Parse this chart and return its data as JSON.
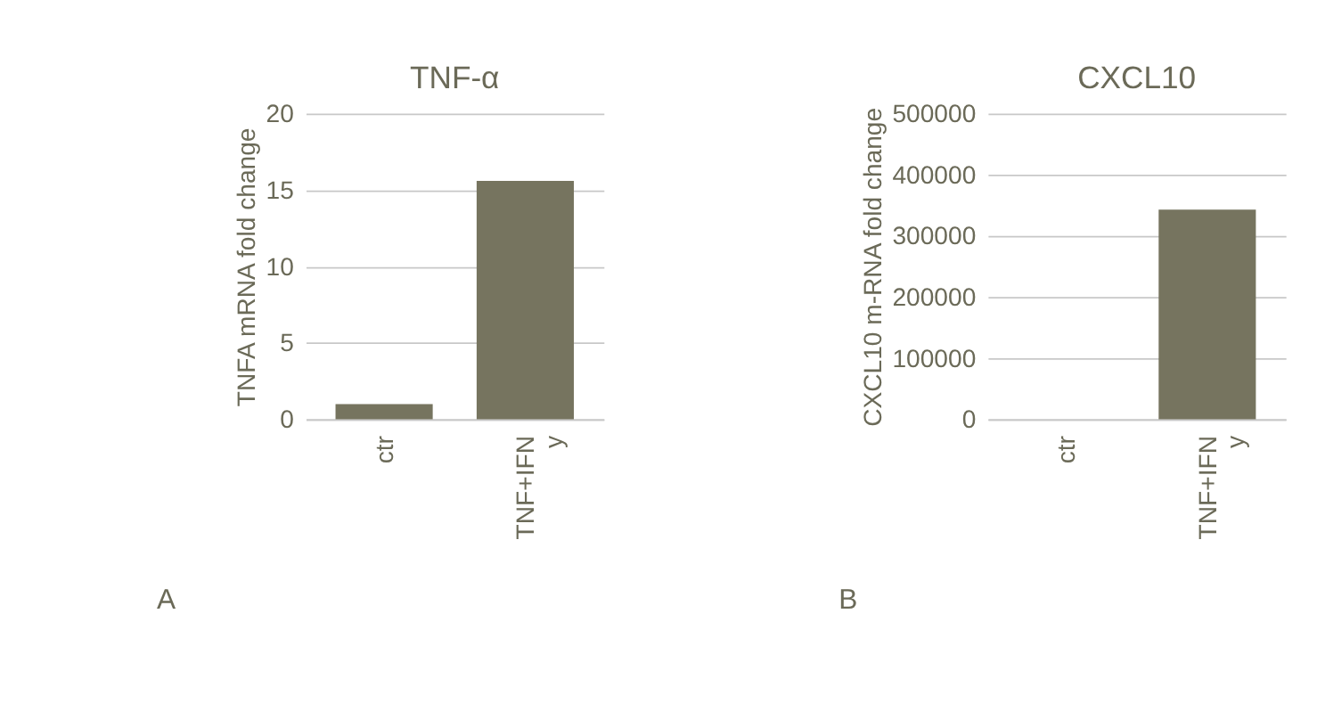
{
  "chart_data": [
    {
      "type": "bar",
      "title": "TNF-α",
      "ylabel": "TNFA mRNA fold change",
      "categories": [
        "ctr",
        "TNF+IFN y"
      ],
      "values": [
        1.0,
        15.6
      ],
      "color": "#76745f",
      "ylim": [
        0,
        20
      ],
      "yticks": [
        0,
        5,
        10,
        15,
        20
      ],
      "grid": "y",
      "annotations": [
        "A"
      ]
    },
    {
      "type": "bar",
      "title": "CXCL10",
      "ylabel": "CXCL10 m-RNA fold change",
      "categories": [
        "ctr",
        "TNF+IFN y"
      ],
      "values": [
        0,
        343000
      ],
      "color": "#76745f",
      "ylim": [
        0,
        500000
      ],
      "yticks": [
        0,
        100000,
        200000,
        300000,
        400000,
        500000
      ],
      "grid": "y",
      "annotations": [
        "B"
      ]
    }
  ]
}
